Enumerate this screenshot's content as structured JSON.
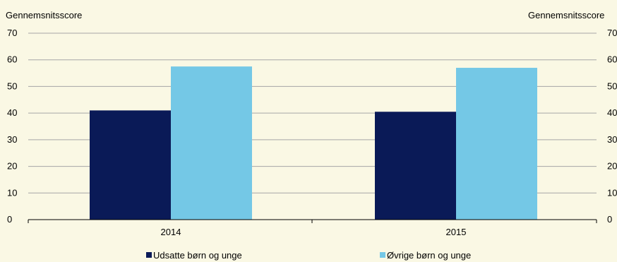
{
  "chart_data": {
    "type": "bar",
    "categories": [
      "2014",
      "2015"
    ],
    "series": [
      {
        "name": "Udsatte børn og unge",
        "values": [
          41,
          40.5
        ],
        "color": "#0a1a57"
      },
      {
        "name": "Øvrige børn og unge",
        "values": [
          57.5,
          57
        ],
        "color": "#74c8e6"
      }
    ],
    "ylabel_left": "Gennemsnitsscore",
    "ylabel_right": "Gennemsnitsscore",
    "ylim": [
      0,
      70
    ],
    "yticks": [
      0,
      10,
      20,
      30,
      40,
      50,
      60,
      70
    ],
    "grid": true,
    "legend_position": "bottom",
    "background": "#faf8e4",
    "gridline_color": "#a6a6a6"
  }
}
